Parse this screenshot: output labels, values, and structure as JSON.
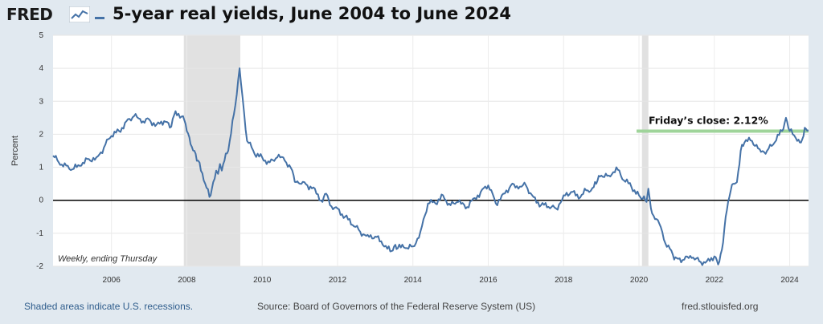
{
  "header": {
    "logo_text": "FRED",
    "title": "5-year real yields, June 2004 to June 2024"
  },
  "footer": {
    "recessions_note": "Shaded areas indicate U.S. recessions.",
    "source": "Source: Board of Governors of the Federal Reserve System (US)",
    "site": "fred.stlouisfed.org"
  },
  "colors": {
    "series": "#4572a7",
    "recession": "#e1e1e1",
    "highlight": "#9fd49a",
    "zero_line": "#000000"
  },
  "chart_data": {
    "type": "line",
    "title": "5-year real yields, June 2004 to June 2024",
    "ylabel": "Percent",
    "xlabel": "",
    "xlim": [
      2004.45,
      2024.5
    ],
    "ylim": [
      -2,
      5
    ],
    "x_ticks": [
      2006,
      2008,
      2010,
      2012,
      2014,
      2016,
      2018,
      2020,
      2022,
      2024
    ],
    "x_tick_labels": [
      "2006",
      "2008",
      "2010",
      "2012",
      "2014",
      "2016",
      "2018",
      "2020",
      "2022",
      "2024"
    ],
    "y_ticks": [
      -2,
      -1,
      0,
      1,
      2,
      3,
      4,
      5
    ],
    "y_tick_labels": [
      "-2",
      "-1",
      "0",
      "1",
      "2",
      "3",
      "4",
      "5"
    ],
    "frequency_note": "Weekly, ending Thursday",
    "recessions": [
      [
        2007.92,
        2009.42
      ],
      [
        2020.08,
        2020.25
      ]
    ],
    "reference_line": {
      "y": 0
    },
    "annotation": {
      "text": "Friday’s close: 2.12%",
      "x_start": 2020.0,
      "x_end": 2024.5,
      "y": 2.12
    },
    "series": [
      {
        "name": "5-year real yields",
        "x": [
          2004.45,
          2004.6,
          2004.8,
          2005.0,
          2005.2,
          2005.4,
          2005.6,
          2005.8,
          2006.0,
          2006.2,
          2006.4,
          2006.6,
          2006.8,
          2007.0,
          2007.2,
          2007.4,
          2007.55,
          2007.7,
          2007.9,
          2008.0,
          2008.1,
          2008.2,
          2008.3,
          2008.45,
          2008.6,
          2008.7,
          2008.78,
          2008.83,
          2008.88,
          2008.93,
          2009.0,
          2009.1,
          2009.25,
          2009.4,
          2009.6,
          2009.8,
          2010.0,
          2010.2,
          2010.4,
          2010.6,
          2010.8,
          2010.9,
          2011.0,
          2011.2,
          2011.4,
          2011.6,
          2011.7,
          2011.8,
          2012.0,
          2012.2,
          2012.4,
          2012.6,
          2012.8,
          2013.0,
          2013.2,
          2013.4,
          2013.5,
          2013.6,
          2013.8,
          2014.0,
          2014.2,
          2014.4,
          2014.6,
          2014.8,
          2015.0,
          2015.2,
          2015.4,
          2015.6,
          2015.8,
          2016.0,
          2016.2,
          2016.4,
          2016.6,
          2016.8,
          2017.0,
          2017.2,
          2017.4,
          2017.6,
          2017.8,
          2018.0,
          2018.2,
          2018.4,
          2018.6,
          2018.8,
          2018.9,
          2019.0,
          2019.2,
          2019.4,
          2019.6,
          2019.8,
          2020.0,
          2020.1,
          2020.2,
          2020.25,
          2020.35,
          2020.5,
          2020.7,
          2020.9,
          2021.0,
          2021.2,
          2021.4,
          2021.6,
          2021.8,
          2022.0,
          2022.1,
          2022.2,
          2022.3,
          2022.4,
          2022.5,
          2022.6,
          2022.7,
          2022.8,
          2023.0,
          2023.2,
          2023.4,
          2023.6,
          2023.8,
          2023.9,
          2024.0,
          2024.2,
          2024.3,
          2024.4,
          2024.5
        ],
        "y": [
          1.35,
          1.15,
          1.05,
          0.95,
          1.05,
          1.25,
          1.3,
          1.6,
          1.95,
          2.1,
          2.4,
          2.55,
          2.35,
          2.45,
          2.3,
          2.4,
          2.2,
          2.7,
          2.55,
          2.1,
          1.7,
          1.5,
          1.2,
          0.6,
          0.1,
          0.55,
          0.9,
          0.8,
          1.1,
          0.9,
          1.2,
          1.5,
          2.6,
          4.0,
          1.8,
          1.4,
          1.3,
          1.15,
          1.3,
          1.2,
          0.9,
          0.55,
          0.5,
          0.45,
          0.35,
          -0.05,
          0.2,
          -0.15,
          -0.25,
          -0.5,
          -0.75,
          -0.95,
          -1.05,
          -1.1,
          -1.35,
          -1.55,
          -1.4,
          -1.45,
          -1.45,
          -1.4,
          -0.95,
          -0.1,
          -0.1,
          0.15,
          -0.15,
          -0.05,
          -0.25,
          0.05,
          0.25,
          0.45,
          -0.1,
          0.2,
          0.45,
          0.35,
          0.45,
          0.1,
          -0.15,
          -0.2,
          -0.25,
          0.15,
          0.25,
          0.05,
          0.3,
          0.4,
          0.6,
          0.75,
          0.75,
          1.0,
          0.6,
          0.4,
          0.15,
          0.05,
          -0.05,
          0.35,
          -0.4,
          -0.6,
          -1.3,
          -1.65,
          -1.75,
          -1.8,
          -1.75,
          -1.85,
          -1.85,
          -1.7,
          -1.95,
          -1.5,
          -0.5,
          0.1,
          0.5,
          0.55,
          1.5,
          1.75,
          1.8,
          1.55,
          1.5,
          1.75,
          2.1,
          2.5,
          2.1,
          1.8,
          1.75,
          2.2,
          2.12
        ]
      }
    ]
  }
}
